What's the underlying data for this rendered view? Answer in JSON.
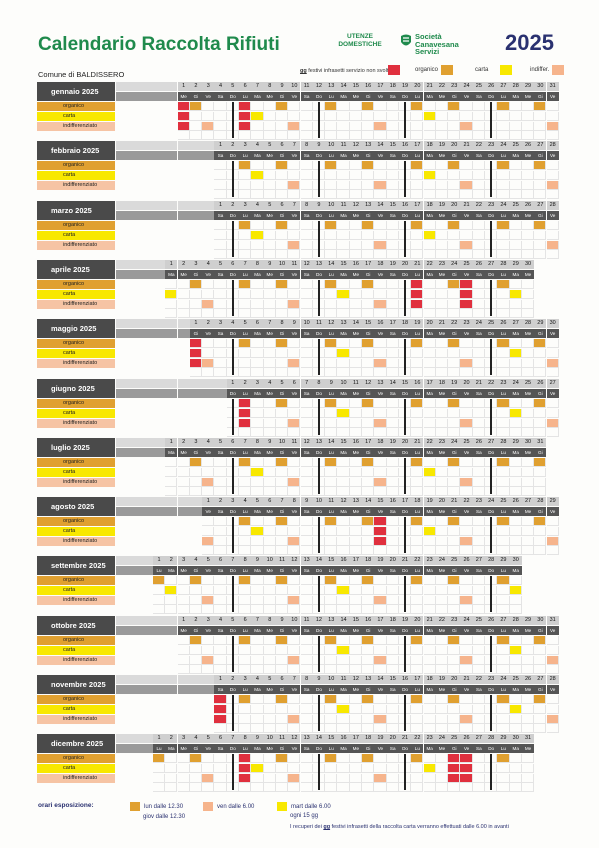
{
  "header": {
    "title": "Calendario Raccolta  Rifiuti",
    "utenze": "UTENZE DOMESTICHE",
    "logo_lines": [
      "Società",
      "Canavesana",
      "Servizi"
    ],
    "year": "2025",
    "comune": "Comune di BALDISSERO",
    "festivi_gg": "gg",
    "festivi_text": " festivi infrasetti servizio non svolto"
  },
  "legend": [
    {
      "label": "organico",
      "color": "#e0a030"
    },
    {
      "label": "carta",
      "color": "#f8e800"
    },
    {
      "label": "indiffer.",
      "color": "#f6b48c"
    }
  ],
  "highlight_color": "#e0303e",
  "categories": {
    "organico": "organico",
    "carta": "carta",
    "indiff": "indifferenziato"
  },
  "months": [
    {
      "name": "gennaio 2025",
      "days": 31,
      "start": 2,
      "org": [],
      "car": [],
      "ind": []
    },
    {
      "name": "febbraio 2025",
      "days": 28,
      "start": 5,
      "org": [],
      "car": [],
      "ind": []
    },
    {
      "name": "marzo 2025",
      "days": 31,
      "start": 5,
      "org": [],
      "car": [],
      "ind": []
    },
    {
      "name": "aprile 2025",
      "days": 30,
      "start": 1,
      "org": [],
      "car": [],
      "ind": []
    },
    {
      "name": "maggio 2025",
      "days": 31,
      "start": 3,
      "org": [],
      "car": [],
      "ind": []
    },
    {
      "name": "giugno 2025",
      "days": 30,
      "start": 6,
      "org": [],
      "car": [],
      "ind": []
    },
    {
      "name": "luglio 2025",
      "days": 31,
      "start": 1,
      "org": [],
      "car": [],
      "ind": []
    },
    {
      "name": "agosto 2025",
      "days": 31,
      "start": 4,
      "org": [],
      "car": [],
      "ind": []
    },
    {
      "name": "settembre 2025",
      "days": 30,
      "start": 0,
      "org": [],
      "car": [],
      "ind": []
    },
    {
      "name": "ottobre 2025",
      "days": 31,
      "start": 2,
      "org": [],
      "car": [],
      "ind": []
    },
    {
      "name": "novembre 2025",
      "days": 30,
      "start": 5,
      "org": [],
      "car": [],
      "ind": []
    },
    {
      "name": "dicembre 2025",
      "days": 31,
      "start": 0,
      "org": [],
      "car": [],
      "ind": []
    }
  ],
  "weekday_abbr": [
    "Lu",
    "Ma",
    "Me",
    "Gi",
    "Ve",
    "Sa",
    "Do"
  ],
  "footer": {
    "label": "orari esposizione:",
    "org1": "lun dalle 12.30",
    "org2": "giov dalle 12.30",
    "ind": "ven dalle 6.00",
    "car1": "mart dalle 6.00",
    "car2": "ogni 15 gg",
    "note_prefix": "I recuperi dei ",
    "note_gg": "gg",
    "note_suffix": " festivi infrasetti della raccolta carta verranno effettuati dalle 6.00 in avanti"
  }
}
